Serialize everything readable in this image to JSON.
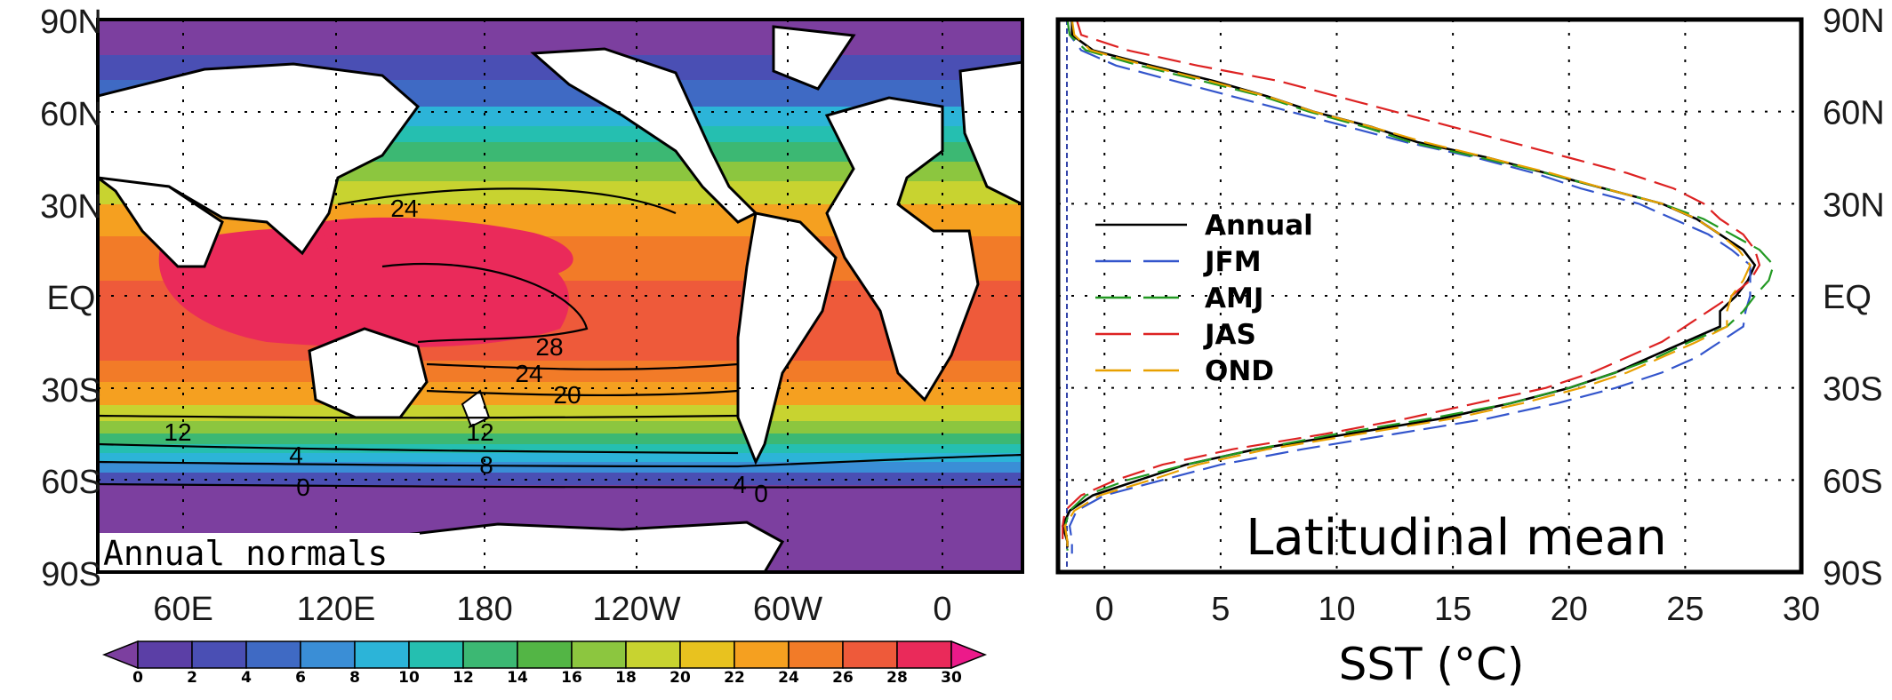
{
  "chart_data": [
    {
      "type": "heatmap",
      "panel_label": "Annual normals",
      "x_ticks": [
        "60E",
        "120E",
        "180",
        "120W",
        "60W",
        "0"
      ],
      "y_ticks": [
        "90N",
        "60N",
        "30N",
        "EQ",
        "30S",
        "60S",
        "90S"
      ],
      "colorbar": {
        "levels": [
          "0",
          "2",
          "4",
          "6",
          "8",
          "10",
          "12",
          "14",
          "16",
          "18",
          "20",
          "22",
          "24",
          "26",
          "28",
          "30"
        ],
        "colors": [
          "#7c3f9f",
          "#5b3fa6",
          "#4a4fb4",
          "#3f6ac4",
          "#3a8ed6",
          "#2cb4d8",
          "#25bfb0",
          "#3cb873",
          "#53b545",
          "#8cc63f",
          "#c8d330",
          "#e8c21f",
          "#f5a020",
          "#f27b28",
          "#ee5a3a",
          "#ea2a5a",
          "#ec1a8a"
        ]
      },
      "contour_labels": [
        "24",
        "28",
        "24",
        "20",
        "12",
        "12",
        "4",
        "8",
        "0",
        "4",
        "0"
      ]
    },
    {
      "type": "line",
      "panel_label": "Latitudinal mean",
      "xlabel": "SST (°C)",
      "xlim": [
        -2,
        30
      ],
      "x_ticks": [
        "0",
        "5",
        "10",
        "15",
        "20",
        "25",
        "30"
      ],
      "y_ticks": [
        "90N",
        "60N",
        "30N",
        "EQ",
        "30S",
        "60S",
        "90S"
      ],
      "grid": true,
      "legend_position": "left-middle",
      "series": [
        {
          "name": "Annual",
          "color": "#000000",
          "dash": "solid",
          "points": [
            [
              -1.4,
              90
            ],
            [
              -1.4,
              85
            ],
            [
              -0.5,
              80
            ],
            [
              2.0,
              75
            ],
            [
              4.7,
              70
            ],
            [
              7.0,
              65
            ],
            [
              9.0,
              60
            ],
            [
              11.5,
              55
            ],
            [
              13.5,
              50
            ],
            [
              16.5,
              45
            ],
            [
              19.0,
              40
            ],
            [
              21.5,
              35
            ],
            [
              24.0,
              30
            ],
            [
              25.5,
              25
            ],
            [
              26.5,
              20
            ],
            [
              27.5,
              15
            ],
            [
              28.0,
              10
            ],
            [
              27.7,
              5
            ],
            [
              27.2,
              0
            ],
            [
              26.5,
              -5
            ],
            [
              26.5,
              -10
            ],
            [
              25.0,
              -15
            ],
            [
              23.5,
              -20
            ],
            [
              22.0,
              -25
            ],
            [
              20.0,
              -30
            ],
            [
              17.5,
              -35
            ],
            [
              14.5,
              -40
            ],
            [
              10.5,
              -45
            ],
            [
              6.5,
              -50
            ],
            [
              3.5,
              -55
            ],
            [
              1.5,
              -60
            ],
            [
              -0.5,
              -65
            ],
            [
              -1.5,
              -70
            ],
            [
              -1.8,
              -75
            ],
            [
              -1.6,
              -80
            ],
            [
              -1.6,
              -82
            ]
          ]
        },
        {
          "name": "JFM",
          "color": "#3355cc",
          "dash": "long",
          "points": [
            [
              -1.6,
              90
            ],
            [
              -1.5,
              85
            ],
            [
              -1.0,
              80
            ],
            [
              0.5,
              75
            ],
            [
              3.0,
              70
            ],
            [
              5.5,
              65
            ],
            [
              8.0,
              60
            ],
            [
              10.5,
              55
            ],
            [
              13.0,
              50
            ],
            [
              16.0,
              45
            ],
            [
              18.5,
              40
            ],
            [
              20.5,
              35
            ],
            [
              23.0,
              30
            ],
            [
              24.5,
              25
            ],
            [
              26.0,
              20
            ],
            [
              27.0,
              15
            ],
            [
              27.8,
              10
            ],
            [
              27.8,
              5
            ],
            [
              27.8,
              0
            ],
            [
              27.6,
              -5
            ],
            [
              27.5,
              -10
            ],
            [
              26.5,
              -15
            ],
            [
              25.5,
              -20
            ],
            [
              24.0,
              -25
            ],
            [
              22.0,
              -30
            ],
            [
              19.5,
              -35
            ],
            [
              16.5,
              -40
            ],
            [
              12.5,
              -45
            ],
            [
              8.5,
              -50
            ],
            [
              5.0,
              -55
            ],
            [
              2.5,
              -60
            ],
            [
              0.0,
              -65
            ],
            [
              -1.2,
              -70
            ],
            [
              -1.5,
              -75
            ],
            [
              -1.4,
              -80
            ],
            [
              -1.4,
              -84
            ]
          ]
        },
        {
          "name": "AMJ",
          "color": "#229922",
          "dash": "long",
          "points": [
            [
              -1.6,
              90
            ],
            [
              -1.5,
              85
            ],
            [
              -0.8,
              80
            ],
            [
              1.5,
              75
            ],
            [
              4.2,
              70
            ],
            [
              6.8,
              65
            ],
            [
              8.8,
              60
            ],
            [
              11.2,
              55
            ],
            [
              13.2,
              50
            ],
            [
              16.2,
              45
            ],
            [
              19.0,
              40
            ],
            [
              21.5,
              35
            ],
            [
              24.0,
              30
            ],
            [
              25.8,
              25
            ],
            [
              27.0,
              20
            ],
            [
              28.2,
              15
            ],
            [
              28.8,
              10
            ],
            [
              28.6,
              5
            ],
            [
              28.0,
              0
            ],
            [
              27.5,
              -5
            ],
            [
              26.8,
              -10
            ],
            [
              25.2,
              -15
            ],
            [
              23.8,
              -20
            ],
            [
              22.0,
              -25
            ],
            [
              20.0,
              -30
            ],
            [
              17.5,
              -35
            ],
            [
              14.0,
              -40
            ],
            [
              10.0,
              -45
            ],
            [
              6.5,
              -50
            ],
            [
              3.5,
              -55
            ],
            [
              1.0,
              -60
            ],
            [
              -0.8,
              -65
            ],
            [
              -1.5,
              -70
            ],
            [
              -1.7,
              -75
            ],
            [
              -1.6,
              -80
            ],
            [
              -1.6,
              -83
            ]
          ]
        },
        {
          "name": "JAS",
          "color": "#dd2222",
          "dash": "long",
          "points": [
            [
              -1.2,
              90
            ],
            [
              -1.0,
              85
            ],
            [
              1.0,
              80
            ],
            [
              4.0,
              75
            ],
            [
              7.5,
              70
            ],
            [
              10.0,
              65
            ],
            [
              12.5,
              60
            ],
            [
              15.0,
              55
            ],
            [
              17.5,
              50
            ],
            [
              20.0,
              45
            ],
            [
              22.5,
              40
            ],
            [
              24.5,
              35
            ],
            [
              25.8,
              30
            ],
            [
              26.5,
              25
            ],
            [
              27.5,
              20
            ],
            [
              28.0,
              15
            ],
            [
              28.2,
              10
            ],
            [
              27.8,
              5
            ],
            [
              27.0,
              0
            ],
            [
              26.0,
              -5
            ],
            [
              25.0,
              -10
            ],
            [
              24.0,
              -15
            ],
            [
              22.5,
              -20
            ],
            [
              21.0,
              -25
            ],
            [
              19.0,
              -30
            ],
            [
              16.0,
              -35
            ],
            [
              13.0,
              -40
            ],
            [
              9.5,
              -45
            ],
            [
              5.5,
              -50
            ],
            [
              2.5,
              -55
            ],
            [
              0.5,
              -60
            ],
            [
              -1.0,
              -65
            ],
            [
              -1.7,
              -70
            ],
            [
              -1.8,
              -75
            ],
            [
              -1.8,
              -80
            ],
            [
              -1.8,
              -82
            ]
          ]
        },
        {
          "name": "OND",
          "color": "#e8a000",
          "dash": "long",
          "points": [
            [
              -1.4,
              90
            ],
            [
              -1.3,
              85
            ],
            [
              -0.6,
              80
            ],
            [
              1.8,
              75
            ],
            [
              4.5,
              70
            ],
            [
              7.0,
              65
            ],
            [
              9.0,
              60
            ],
            [
              11.5,
              55
            ],
            [
              13.8,
              50
            ],
            [
              16.5,
              45
            ],
            [
              19.2,
              40
            ],
            [
              21.5,
              35
            ],
            [
              24.0,
              30
            ],
            [
              25.5,
              25
            ],
            [
              26.5,
              20
            ],
            [
              27.3,
              15
            ],
            [
              27.8,
              10
            ],
            [
              27.5,
              5
            ],
            [
              27.0,
              0
            ],
            [
              26.8,
              -5
            ],
            [
              26.8,
              -10
            ],
            [
              25.5,
              -15
            ],
            [
              24.0,
              -20
            ],
            [
              22.5,
              -25
            ],
            [
              20.5,
              -30
            ],
            [
              18.0,
              -35
            ],
            [
              15.0,
              -40
            ],
            [
              11.0,
              -45
            ],
            [
              7.0,
              -50
            ],
            [
              4.0,
              -55
            ],
            [
              2.0,
              -60
            ],
            [
              -0.2,
              -65
            ],
            [
              -1.3,
              -70
            ],
            [
              -1.7,
              -75
            ],
            [
              -1.6,
              -80
            ],
            [
              -1.6,
              -83
            ]
          ]
        }
      ]
    }
  ]
}
